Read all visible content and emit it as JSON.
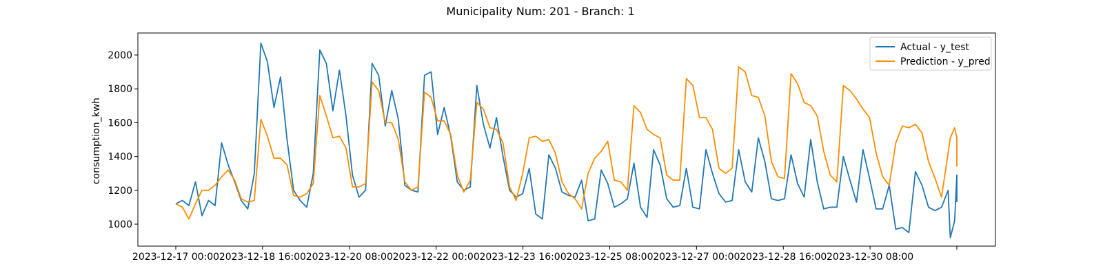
{
  "chart_data": {
    "type": "line",
    "title": "Municipality Num: 201 - Branch: 1",
    "xlabel": "",
    "ylabel": "consumption_kwh",
    "x_start": "2023-12-17 00:00",
    "x_end": "2023-12-31 22:00",
    "ylim": [
      870,
      2130
    ],
    "yticks": [
      1000,
      1200,
      1400,
      1600,
      1800,
      2000
    ],
    "xticks": [
      "2023-12-17 00:00",
      "2023-12-18 16:00",
      "2023-12-20 08:00",
      "2023-12-22 00:00",
      "2023-12-23 16:00",
      "2023-12-25 08:00",
      "2023-12-27 00:00",
      "2023-12-28 16:00",
      "2023-12-30 08:00",
      ""
    ],
    "grid": false,
    "legend": "top-right",
    "colors": {
      "actual": "#1f77b4",
      "pred": "#ff8c00"
    },
    "series": [
      {
        "name": "Actual - y_test",
        "color": "#1f77b4",
        "points": [
          [
            "2023-12-17 00:00",
            1120
          ],
          [
            "2023-12-17 03:00",
            1140
          ],
          [
            "2023-12-17 06:00",
            1110
          ],
          [
            "2023-12-17 09:00",
            1250
          ],
          [
            "2023-12-17 12:00",
            1050
          ],
          [
            "2023-12-17 15:00",
            1140
          ],
          [
            "2023-12-17 18:00",
            1110
          ],
          [
            "2023-12-17 21:00",
            1480
          ],
          [
            "2023-12-18 00:00",
            1350
          ],
          [
            "2023-12-18 03:00",
            1250
          ],
          [
            "2023-12-18 06:00",
            1140
          ],
          [
            "2023-12-18 09:00",
            1090
          ],
          [
            "2023-12-18 12:00",
            1300
          ],
          [
            "2023-12-18 15:00",
            2070
          ],
          [
            "2023-12-18 18:00",
            1960
          ],
          [
            "2023-12-18 21:00",
            1690
          ],
          [
            "2023-12-19 00:00",
            1870
          ],
          [
            "2023-12-19 03:00",
            1500
          ],
          [
            "2023-12-19 06:00",
            1200
          ],
          [
            "2023-12-19 09:00",
            1140
          ],
          [
            "2023-12-19 12:00",
            1100
          ],
          [
            "2023-12-19 15:00",
            1300
          ],
          [
            "2023-12-19 18:00",
            2030
          ],
          [
            "2023-12-19 21:00",
            1950
          ],
          [
            "2023-12-20 00:00",
            1670
          ],
          [
            "2023-12-20 03:00",
            1910
          ],
          [
            "2023-12-20 06:00",
            1640
          ],
          [
            "2023-12-20 09:00",
            1290
          ],
          [
            "2023-12-20 12:00",
            1160
          ],
          [
            "2023-12-20 15:00",
            1200
          ],
          [
            "2023-12-20 18:00",
            1950
          ],
          [
            "2023-12-20 21:00",
            1880
          ],
          [
            "2023-12-21 00:00",
            1580
          ],
          [
            "2023-12-21 03:00",
            1790
          ],
          [
            "2023-12-21 06:00",
            1620
          ],
          [
            "2023-12-21 09:00",
            1230
          ],
          [
            "2023-12-21 12:00",
            1200
          ],
          [
            "2023-12-21 15:00",
            1190
          ],
          [
            "2023-12-21 18:00",
            1880
          ],
          [
            "2023-12-21 21:00",
            1900
          ],
          [
            "2023-12-22 00:00",
            1530
          ],
          [
            "2023-12-22 03:00",
            1690
          ],
          [
            "2023-12-22 06:00",
            1520
          ],
          [
            "2023-12-22 09:00",
            1250
          ],
          [
            "2023-12-22 12:00",
            1200
          ],
          [
            "2023-12-22 15:00",
            1220
          ],
          [
            "2023-12-22 18:00",
            1820
          ],
          [
            "2023-12-22 21:00",
            1590
          ],
          [
            "2023-12-23 00:00",
            1450
          ],
          [
            "2023-12-23 03:00",
            1630
          ],
          [
            "2023-12-23 06:00",
            1400
          ],
          [
            "2023-12-23 09:00",
            1200
          ],
          [
            "2023-12-23 12:00",
            1160
          ],
          [
            "2023-12-23 15:00",
            1180
          ],
          [
            "2023-12-23 18:00",
            1330
          ],
          [
            "2023-12-23 21:00",
            1060
          ],
          [
            "2023-12-24 00:00",
            1030
          ],
          [
            "2023-12-24 03:00",
            1410
          ],
          [
            "2023-12-24 06:00",
            1330
          ],
          [
            "2023-12-24 09:00",
            1190
          ],
          [
            "2023-12-24 12:00",
            1170
          ],
          [
            "2023-12-24 15:00",
            1160
          ],
          [
            "2023-12-24 18:00",
            1260
          ],
          [
            "2023-12-24 21:00",
            1020
          ],
          [
            "2023-12-25 00:00",
            1030
          ],
          [
            "2023-12-25 03:00",
            1320
          ],
          [
            "2023-12-25 06:00",
            1240
          ],
          [
            "2023-12-25 09:00",
            1100
          ],
          [
            "2023-12-25 12:00",
            1120
          ],
          [
            "2023-12-25 15:00",
            1150
          ],
          [
            "2023-12-25 18:00",
            1360
          ],
          [
            "2023-12-25 21:00",
            1100
          ],
          [
            "2023-12-26 00:00",
            1040
          ],
          [
            "2023-12-26 03:00",
            1440
          ],
          [
            "2023-12-26 06:00",
            1350
          ],
          [
            "2023-12-26 09:00",
            1150
          ],
          [
            "2023-12-26 12:00",
            1100
          ],
          [
            "2023-12-26 15:00",
            1110
          ],
          [
            "2023-12-26 18:00",
            1330
          ],
          [
            "2023-12-26 21:00",
            1100
          ],
          [
            "2023-12-27 00:00",
            1090
          ],
          [
            "2023-12-27 03:00",
            1440
          ],
          [
            "2023-12-27 06:00",
            1300
          ],
          [
            "2023-12-27 09:00",
            1180
          ],
          [
            "2023-12-27 12:00",
            1130
          ],
          [
            "2023-12-27 15:00",
            1140
          ],
          [
            "2023-12-27 18:00",
            1440
          ],
          [
            "2023-12-27 21:00",
            1250
          ],
          [
            "2023-12-28 00:00",
            1190
          ],
          [
            "2023-12-28 03:00",
            1510
          ],
          [
            "2023-12-28 06:00",
            1370
          ],
          [
            "2023-12-28 09:00",
            1150
          ],
          [
            "2023-12-28 12:00",
            1140
          ],
          [
            "2023-12-28 15:00",
            1150
          ],
          [
            "2023-12-28 18:00",
            1410
          ],
          [
            "2023-12-28 21:00",
            1240
          ],
          [
            "2023-12-29 00:00",
            1160
          ],
          [
            "2023-12-29 03:00",
            1500
          ],
          [
            "2023-12-29 06:00",
            1250
          ],
          [
            "2023-12-29 09:00",
            1090
          ],
          [
            "2023-12-29 12:00",
            1100
          ],
          [
            "2023-12-29 15:00",
            1100
          ],
          [
            "2023-12-29 18:00",
            1400
          ],
          [
            "2023-12-29 21:00",
            1260
          ],
          [
            "2023-12-30 00:00",
            1130
          ],
          [
            "2023-12-30 03:00",
            1440
          ],
          [
            "2023-12-30 06:00",
            1270
          ],
          [
            "2023-12-30 09:00",
            1090
          ],
          [
            "2023-12-30 12:00",
            1090
          ],
          [
            "2023-12-30 15:00",
            1230
          ],
          [
            "2023-12-30 18:00",
            970
          ],
          [
            "2023-12-30 21:00",
            980
          ],
          [
            "2023-12-31 00:00",
            950
          ],
          [
            "2023-12-31 03:00",
            1310
          ],
          [
            "2023-12-31 06:00",
            1230
          ],
          [
            "2023-12-31 09:00",
            1100
          ],
          [
            "2023-12-31 12:00",
            1080
          ],
          [
            "2023-12-31 15:00",
            1100
          ],
          [
            "2023-12-31 18:00",
            1200
          ],
          [
            "2023-12-31 19:00",
            920
          ],
          [
            "2023-12-31 21:00",
            1020
          ],
          [
            "2023-12-31 22:00",
            1290
          ],
          [
            "2023-12-31 22:00",
            1220
          ],
          [
            "2023-12-31 22:00",
            1130
          ]
        ]
      },
      {
        "name": "Prediction - y_pred",
        "color": "#ff8c00",
        "points": [
          [
            "2023-12-17 00:00",
            1120
          ],
          [
            "2023-12-17 03:00",
            1100
          ],
          [
            "2023-12-17 06:00",
            1030
          ],
          [
            "2023-12-17 09:00",
            1120
          ],
          [
            "2023-12-17 12:00",
            1200
          ],
          [
            "2023-12-17 15:00",
            1200
          ],
          [
            "2023-12-17 18:00",
            1230
          ],
          [
            "2023-12-17 21:00",
            1280
          ],
          [
            "2023-12-18 00:00",
            1320
          ],
          [
            "2023-12-18 03:00",
            1260
          ],
          [
            "2023-12-18 06:00",
            1150
          ],
          [
            "2023-12-18 09:00",
            1130
          ],
          [
            "2023-12-18 12:00",
            1140
          ],
          [
            "2023-12-18 15:00",
            1620
          ],
          [
            "2023-12-18 18:00",
            1520
          ],
          [
            "2023-12-18 21:00",
            1390
          ],
          [
            "2023-12-19 00:00",
            1390
          ],
          [
            "2023-12-19 03:00",
            1350
          ],
          [
            "2023-12-19 06:00",
            1170
          ],
          [
            "2023-12-19 09:00",
            1160
          ],
          [
            "2023-12-19 12:00",
            1180
          ],
          [
            "2023-12-19 15:00",
            1240
          ],
          [
            "2023-12-19 18:00",
            1760
          ],
          [
            "2023-12-19 21:00",
            1640
          ],
          [
            "2023-12-20 00:00",
            1510
          ],
          [
            "2023-12-20 03:00",
            1520
          ],
          [
            "2023-12-20 06:00",
            1450
          ],
          [
            "2023-12-20 09:00",
            1220
          ],
          [
            "2023-12-20 12:00",
            1220
          ],
          [
            "2023-12-20 15:00",
            1240
          ],
          [
            "2023-12-20 18:00",
            1840
          ],
          [
            "2023-12-20 21:00",
            1790
          ],
          [
            "2023-12-21 00:00",
            1600
          ],
          [
            "2023-12-21 03:00",
            1600
          ],
          [
            "2023-12-21 06:00",
            1500
          ],
          [
            "2023-12-21 09:00",
            1250
          ],
          [
            "2023-12-21 12:00",
            1200
          ],
          [
            "2023-12-21 15:00",
            1220
          ],
          [
            "2023-12-21 18:00",
            1780
          ],
          [
            "2023-12-21 21:00",
            1750
          ],
          [
            "2023-12-22 00:00",
            1610
          ],
          [
            "2023-12-22 03:00",
            1610
          ],
          [
            "2023-12-22 06:00",
            1530
          ],
          [
            "2023-12-22 09:00",
            1290
          ],
          [
            "2023-12-22 12:00",
            1190
          ],
          [
            "2023-12-22 15:00",
            1260
          ],
          [
            "2023-12-22 18:00",
            1720
          ],
          [
            "2023-12-22 21:00",
            1680
          ],
          [
            "2023-12-23 00:00",
            1570
          ],
          [
            "2023-12-23 03:00",
            1560
          ],
          [
            "2023-12-23 06:00",
            1480
          ],
          [
            "2023-12-23 09:00",
            1220
          ],
          [
            "2023-12-23 12:00",
            1140
          ],
          [
            "2023-12-23 15:00",
            1300
          ],
          [
            "2023-12-23 18:00",
            1510
          ],
          [
            "2023-12-23 21:00",
            1520
          ],
          [
            "2023-12-24 00:00",
            1490
          ],
          [
            "2023-12-24 03:00",
            1500
          ],
          [
            "2023-12-24 06:00",
            1420
          ],
          [
            "2023-12-24 09:00",
            1250
          ],
          [
            "2023-12-24 12:00",
            1180
          ],
          [
            "2023-12-24 15:00",
            1150
          ],
          [
            "2023-12-24 18:00",
            1090
          ],
          [
            "2023-12-24 21:00",
            1300
          ],
          [
            "2023-12-25 00:00",
            1390
          ],
          [
            "2023-12-25 03:00",
            1430
          ],
          [
            "2023-12-25 06:00",
            1490
          ],
          [
            "2023-12-25 09:00",
            1260
          ],
          [
            "2023-12-25 12:00",
            1250
          ],
          [
            "2023-12-25 15:00",
            1200
          ],
          [
            "2023-12-25 18:00",
            1700
          ],
          [
            "2023-12-25 21:00",
            1660
          ],
          [
            "2023-12-26 00:00",
            1560
          ],
          [
            "2023-12-26 03:00",
            1530
          ],
          [
            "2023-12-26 06:00",
            1510
          ],
          [
            "2023-12-26 09:00",
            1290
          ],
          [
            "2023-12-26 12:00",
            1260
          ],
          [
            "2023-12-26 15:00",
            1260
          ],
          [
            "2023-12-26 18:00",
            1860
          ],
          [
            "2023-12-26 21:00",
            1820
          ],
          [
            "2023-12-27 00:00",
            1630
          ],
          [
            "2023-12-27 03:00",
            1630
          ],
          [
            "2023-12-27 06:00",
            1560
          ],
          [
            "2023-12-27 09:00",
            1330
          ],
          [
            "2023-12-27 12:00",
            1300
          ],
          [
            "2023-12-27 15:00",
            1330
          ],
          [
            "2023-12-27 18:00",
            1930
          ],
          [
            "2023-12-27 21:00",
            1900
          ],
          [
            "2023-12-28 00:00",
            1760
          ],
          [
            "2023-12-28 03:00",
            1750
          ],
          [
            "2023-12-28 06:00",
            1640
          ],
          [
            "2023-12-28 09:00",
            1370
          ],
          [
            "2023-12-28 12:00",
            1280
          ],
          [
            "2023-12-28 15:00",
            1270
          ],
          [
            "2023-12-28 18:00",
            1890
          ],
          [
            "2023-12-28 21:00",
            1830
          ],
          [
            "2023-12-29 00:00",
            1720
          ],
          [
            "2023-12-29 03:00",
            1700
          ],
          [
            "2023-12-29 06:00",
            1640
          ],
          [
            "2023-12-29 09:00",
            1430
          ],
          [
            "2023-12-29 12:00",
            1290
          ],
          [
            "2023-12-29 15:00",
            1250
          ],
          [
            "2023-12-29 18:00",
            1820
          ],
          [
            "2023-12-29 21:00",
            1790
          ],
          [
            "2023-12-30 00:00",
            1740
          ],
          [
            "2023-12-30 03:00",
            1680
          ],
          [
            "2023-12-30 06:00",
            1630
          ],
          [
            "2023-12-30 09:00",
            1420
          ],
          [
            "2023-12-30 12:00",
            1280
          ],
          [
            "2023-12-30 15:00",
            1230
          ],
          [
            "2023-12-30 18:00",
            1480
          ],
          [
            "2023-12-30 21:00",
            1580
          ],
          [
            "2023-12-31 00:00",
            1570
          ],
          [
            "2023-12-31 03:00",
            1590
          ],
          [
            "2023-12-31 06:00",
            1540
          ],
          [
            "2023-12-31 09:00",
            1370
          ],
          [
            "2023-12-31 12:00",
            1270
          ],
          [
            "2023-12-31 15:00",
            1160
          ],
          [
            "2023-12-31 18:00",
            1420
          ],
          [
            "2023-12-31 19:00",
            1510
          ],
          [
            "2023-12-31 21:00",
            1570
          ],
          [
            "2023-12-31 22:00",
            1510
          ],
          [
            "2023-12-31 22:00",
            1340
          ]
        ]
      }
    ]
  }
}
